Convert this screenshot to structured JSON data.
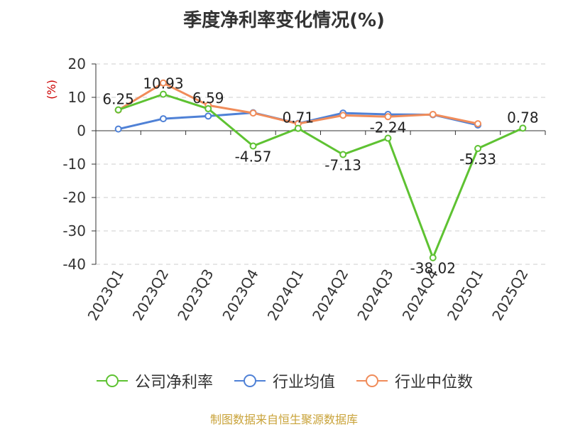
{
  "title": "季度净利率变化情况(%)",
  "source": "制图数据来自恒生聚源数据库",
  "chart_data": {
    "type": "line",
    "title": "季度净利率变化情况(%)",
    "ylabel": "(%)",
    "xlabel": "",
    "categories": [
      "2023Q1",
      "2023Q2",
      "2023Q3",
      "2023Q4",
      "2024Q1",
      "2024Q2",
      "2024Q3",
      "2024Q4",
      "2025Q1",
      "2025Q2"
    ],
    "ylim": [
      -40,
      20
    ],
    "yticks": [
      "20",
      "10",
      "0",
      "-10",
      "-20",
      "-30",
      "-40"
    ],
    "grid": "horizontal dashed",
    "legend_position": "bottom",
    "series": [
      {
        "name": "公司净利率",
        "color": "#5ec232",
        "values": [
          6.25,
          10.93,
          6.59,
          -4.57,
          0.71,
          -7.13,
          -2.24,
          -38.02,
          -5.33,
          0.78
        ],
        "labels": [
          "6.25",
          "10.93",
          "6.59",
          "-4.57",
          "0.71",
          "-7.13",
          "-2.24",
          "-38.02",
          "-5.33",
          "0.78"
        ]
      },
      {
        "name": "行业均值",
        "color": "#4f81d6",
        "values": [
          0.5,
          3.6,
          4.4,
          5.4,
          2.2,
          5.3,
          4.9,
          4.8,
          1.7,
          null
        ]
      },
      {
        "name": "行业中位数",
        "color": "#f08c5a",
        "values": [
          6.2,
          14.3,
          7.6,
          5.3,
          2.1,
          4.6,
          4.2,
          4.9,
          2.1,
          null
        ]
      }
    ]
  }
}
